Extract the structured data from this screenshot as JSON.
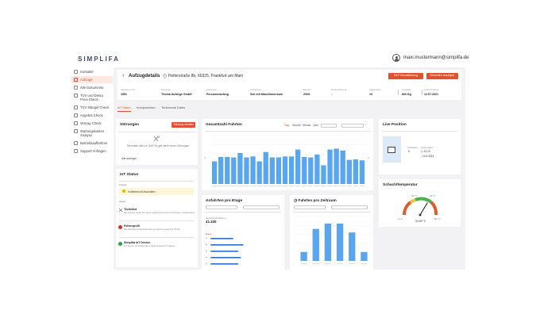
{
  "app": {
    "logo": "SIMPLIFA",
    "user_email": "maxi.mustermann@simplifa.de"
  },
  "sidebar": {
    "items": [
      {
        "label": "Kontakte",
        "active": false
      },
      {
        "label": "Aufzüge",
        "active": true
      },
      {
        "label": "Alle Dokumente",
        "active": false
      },
      {
        "label": "TÜV und Dekra Preis Check",
        "active": false
      },
      {
        "label": "TÜV Mängel Check",
        "active": false
      },
      {
        "label": "Angebot Check",
        "active": false
      },
      {
        "label": "Vertrag Check",
        "active": false
      },
      {
        "label": "Wartungskosten Analyse",
        "active": false
      },
      {
        "label": "Betriebsaufbühren",
        "active": false
      },
      {
        "label": "Support Anfragen",
        "active": false
      }
    ]
  },
  "header": {
    "title": "Aufzugdetails",
    "address": "Hollerstraße 8b, 60325, Frankfurt am Main",
    "btn_primary": "SAP Visualisierung",
    "btn_secondary": "Einheiten anzeigen",
    "meta": [
      {
        "label": "Fabriknummer",
        "value": "3351"
      },
      {
        "label": "Hersteller",
        "value": "Thoma Aufzüge GmbH"
      },
      {
        "label": "Aufzugtyp",
        "value": "Personenaufzug"
      },
      {
        "label": "Antriebsart",
        "value": "Seil mit Maschinenraum"
      },
      {
        "label": "Baujahr",
        "value": "2009"
      },
      {
        "label": "Modernisierung",
        "value": "-"
      },
      {
        "label": "Haltestellen",
        "value": "10"
      },
      {
        "label": "Tragkraft",
        "value": "800 Kg"
      },
      {
        "label": "Letzte Prüfung",
        "value": "12.07.2021"
      }
    ]
  },
  "tabs": [
    "IoT Daten",
    "Komponenten",
    "Technische Daten"
  ],
  "stoerungen": {
    "title": "Störungen",
    "button": "Störung melden",
    "empty_text": "Sie haben alles im Griff. Es gibt keine neuen Störungen",
    "link": "Alle anzeigen"
  },
  "iot_status": {
    "title": "IoT Status",
    "section_label": "Zustand",
    "status_text": "In Betrieb mit Anomalien",
    "details_label": "Details",
    "rows": [
      {
        "title": "Techniker",
        "desc": "Der Aufzug wartet bis dieser aktuell durch einen Techniker unterbrochen",
        "color": "#888888"
      },
      {
        "title": "Fehlerprofil",
        "desc": "Ein aktuelles Fehlerbild wird eine Störung liegt bei 78.1%",
        "color": "#d93025"
      },
      {
        "title": "Simplifa IoT Device",
        "desc": "IoT Device ist aufgeladen und preiswerter Probleme",
        "color": "#2ca34a"
      }
    ]
  },
  "fahrten": {
    "title": "Gesamtzahl Fahrten",
    "periods": [
      "Tag",
      "Woche",
      "Monat",
      "Jahr"
    ],
    "active_period": "Tag"
  },
  "live": {
    "title": "Live Position",
    "label1": "Stockwerk",
    "value1": "0",
    "label2": "Letzte Fahrt",
    "value2": "10:10",
    "value3": "13.9.2021"
  },
  "schacht": {
    "title": "Schachttemperatur",
    "value": "33.69 °C",
    "min": "20 °C",
    "max": "41 °C",
    "low": "0 °C",
    "high": "50 °C"
  },
  "etage": {
    "title": "Anfahrten pro Etage",
    "total_label": "Gesamtzahl Fahrten",
    "total": "41.330",
    "floor_label": "Etage",
    "floors": [
      "7",
      "6",
      "5",
      "4",
      "3"
    ]
  },
  "zeitraum": {
    "title": "Fahrten pro Zeitraum"
  },
  "chart_data": [
    {
      "type": "bar",
      "name": "Gesamtzahl Fahrten",
      "values": [
        0.46,
        0.55,
        0.55,
        0.54,
        0.63,
        0.54,
        0.56,
        0.46,
        0.65,
        0.54,
        0.54,
        0.56,
        0.56,
        0.7,
        0.55,
        0.54,
        0.6,
        0.38,
        0.7,
        0.72,
        0.68,
        0.49,
        0.5,
        0.48
      ],
      "ylim": [
        0,
        1
      ]
    },
    {
      "type": "bar",
      "name": "Fahrten pro Zeitraum",
      "values": [
        0.2,
        0.72,
        0.84,
        0.84,
        0.64,
        0.2
      ],
      "ylim": [
        0,
        1
      ]
    },
    {
      "type": "bar",
      "name": "Anfahrten pro Etage",
      "categories": [
        "7",
        "6",
        "5",
        "4",
        "3"
      ],
      "values": [
        0.36,
        0.52,
        0.44,
        0.48,
        0.44
      ],
      "ylim": [
        0,
        1
      ]
    }
  ],
  "colors": {
    "accent": "#e0522f",
    "bar": "#5aa6ee"
  }
}
